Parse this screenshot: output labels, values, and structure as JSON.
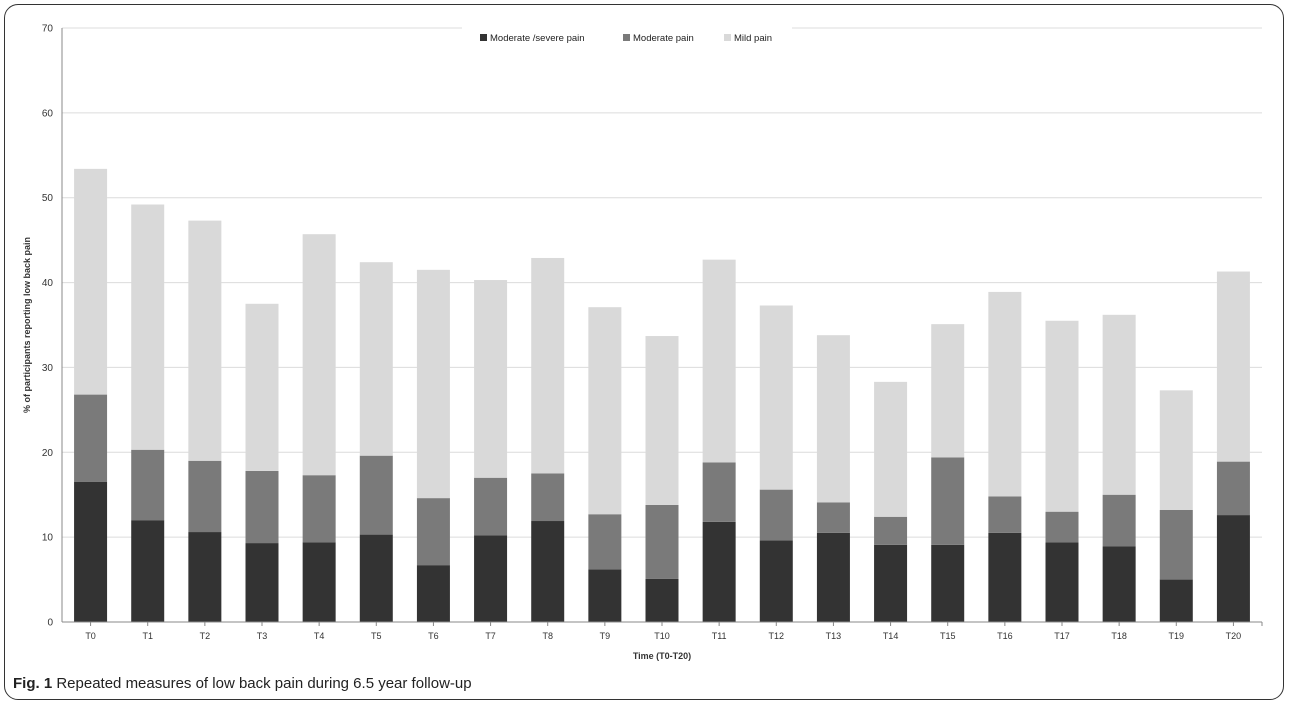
{
  "caption": {
    "label": "Fig. 1",
    "text": "Repeated measures of low back pain during 6.5 year follow-up"
  },
  "colors": {
    "Moderate /severe pain": "#333333",
    "Moderate pain": "#7a7a7a",
    "Mild pain": "#d9d9d9",
    "gridline": "#dcdcdc",
    "axis": "#888888"
  },
  "chart_data": {
    "type": "bar",
    "stacked": true,
    "title": "",
    "xlabel": "Time (T0-T20)",
    "ylabel": "% of participants reporting low back pain",
    "ylim": [
      0,
      70
    ],
    "yticks": [
      0,
      10,
      20,
      30,
      40,
      50,
      60,
      70
    ],
    "grid": true,
    "legend_position": "top-center",
    "categories": [
      "T0",
      "T1",
      "T2",
      "T3",
      "T4",
      "T5",
      "T6",
      "T7",
      "T8",
      "T9",
      "T10",
      "T11",
      "T12",
      "T13",
      "T14",
      "T15",
      "T16",
      "T17",
      "T18",
      "T19",
      "T20"
    ],
    "series": [
      {
        "name": "Moderate /severe pain",
        "values": [
          16.5,
          12.0,
          10.6,
          9.3,
          9.4,
          10.3,
          6.7,
          10.2,
          11.9,
          6.2,
          5.1,
          11.8,
          9.6,
          10.5,
          9.1,
          9.1,
          10.5,
          9.4,
          8.9,
          5.0,
          12.6
        ]
      },
      {
        "name": "Moderate pain",
        "values": [
          10.3,
          8.3,
          8.4,
          8.5,
          7.9,
          9.3,
          7.9,
          6.8,
          5.6,
          6.5,
          8.7,
          7.0,
          6.0,
          3.6,
          3.3,
          10.3,
          4.3,
          3.6,
          6.1,
          8.2,
          6.3
        ]
      },
      {
        "name": "Mild pain",
        "values": [
          26.6,
          28.9,
          28.3,
          19.7,
          28.4,
          22.8,
          26.9,
          23.3,
          25.4,
          24.4,
          19.9,
          23.9,
          21.7,
          19.7,
          15.9,
          15.7,
          24.1,
          22.5,
          21.2,
          14.1,
          22.4
        ]
      }
    ]
  }
}
